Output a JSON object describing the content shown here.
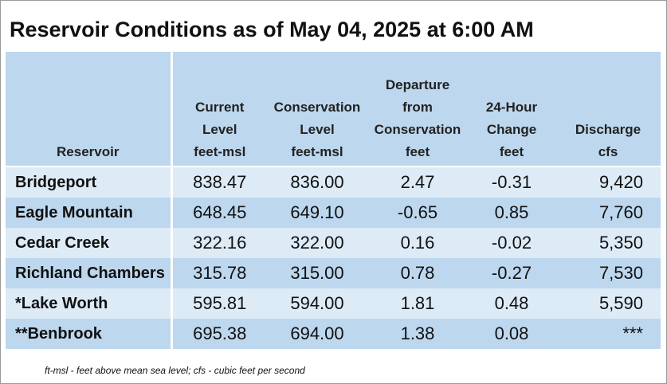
{
  "title": "Reservoir Conditions as of May 04, 2025 at 6:00 AM",
  "columns": [
    {
      "lines": [
        "Reservoir"
      ]
    },
    {
      "lines": [
        "Current",
        "Level",
        "feet-msl"
      ]
    },
    {
      "lines": [
        "Conservation",
        "Level",
        "feet-msl"
      ]
    },
    {
      "lines": [
        "Departure",
        "from",
        "Conservation",
        "feet"
      ]
    },
    {
      "lines": [
        "24-Hour",
        "Change",
        "feet"
      ]
    },
    {
      "lines": [
        "Discharge",
        "cfs"
      ]
    }
  ],
  "rows": [
    {
      "name": "Bridgeport",
      "current": "838.47",
      "conservation": "836.00",
      "departure": "2.47",
      "change": "-0.31",
      "discharge": "9,420"
    },
    {
      "name": "Eagle Mountain",
      "current": "648.45",
      "conservation": "649.10",
      "departure": "-0.65",
      "change": "0.85",
      "discharge": "7,760"
    },
    {
      "name": "Cedar Creek",
      "current": "322.16",
      "conservation": "322.00",
      "departure": "0.16",
      "change": "-0.02",
      "discharge": "5,350"
    },
    {
      "name": "Richland Chambers",
      "current": "315.78",
      "conservation": "315.00",
      "departure": "0.78",
      "change": "-0.27",
      "discharge": "7,530"
    },
    {
      "name": "*Lake Worth",
      "current": "595.81",
      "conservation": "594.00",
      "departure": "1.81",
      "change": "0.48",
      "discharge": "5,590"
    },
    {
      "name": "**Benbrook",
      "current": "695.38",
      "conservation": "694.00",
      "departure": "1.38",
      "change": "0.08",
      "discharge": "***"
    }
  ],
  "footnote": "ft-msl - feet above mean sea level; cfs - cubic feet per second",
  "colors": {
    "header_bg": "#bdd7ee",
    "row_light": "#ddebf7",
    "row_dark": "#bdd7ee"
  }
}
